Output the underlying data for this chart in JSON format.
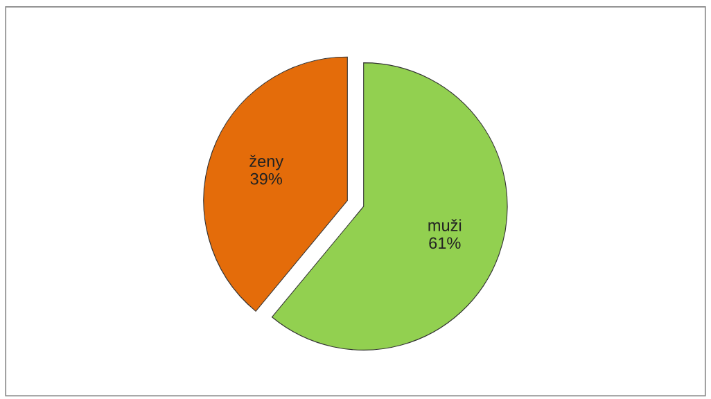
{
  "chart_data": {
    "type": "pie",
    "categories": [
      "muži",
      "ženy"
    ],
    "values": [
      61,
      39
    ],
    "value_labels": [
      "61%",
      "39%"
    ],
    "colors": [
      "#92d050",
      "#e46c0a"
    ],
    "legend": false
  }
}
